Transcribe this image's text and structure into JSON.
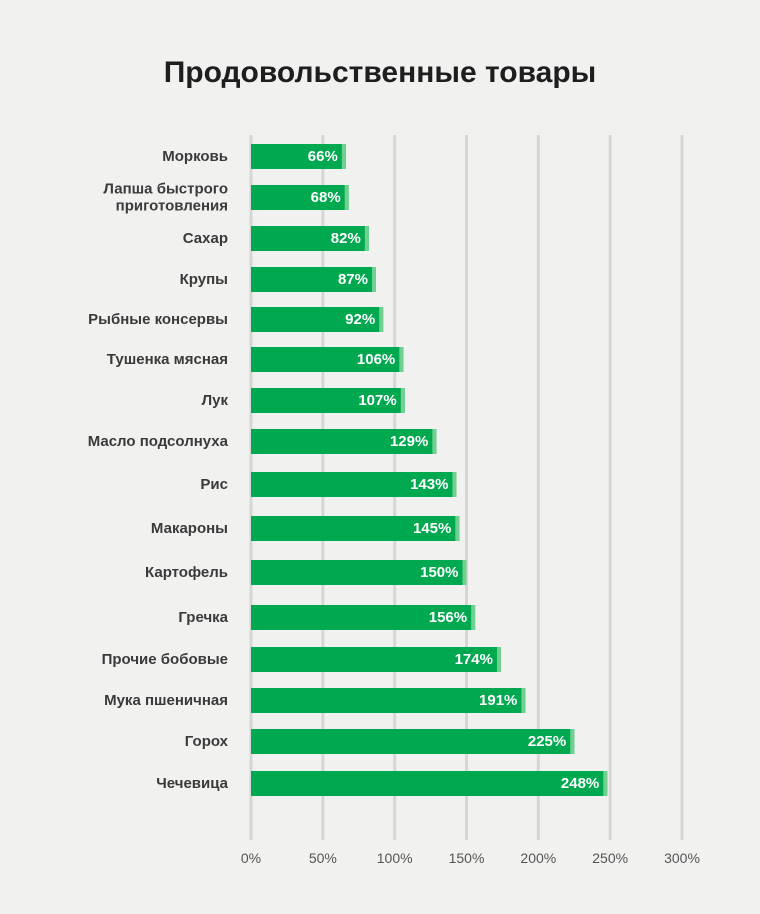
{
  "chart_data": {
    "type": "bar",
    "orientation": "horizontal",
    "title": "Продовольственные товары",
    "xlabel": "",
    "ylabel": "",
    "xlim": [
      0,
      300
    ],
    "grid": true,
    "ticks": [
      "0%",
      "50%",
      "100%",
      "150%",
      "200%",
      "250%",
      "300%"
    ],
    "tick_values": [
      0,
      50,
      100,
      150,
      200,
      250,
      300
    ],
    "categories": [
      "Морковь",
      "Лапша быстрого приготовления",
      "Сахар",
      "Крупы",
      "Рыбные консервы",
      "Тушенка мясная",
      "Лук",
      "Масло подсолнуха",
      "Рис",
      "Макароны",
      "Картофель",
      "Гречка",
      "Прочие бобовые",
      "Мука пшеничная",
      "Горох",
      "Чечевица"
    ],
    "label_lines": [
      [
        "Морковь"
      ],
      [
        "Лапша быстрого",
        "приготовления"
      ],
      [
        "Сахар"
      ],
      [
        "Крупы"
      ],
      [
        "Рыбные консервы"
      ],
      [
        "Тушенка мясная"
      ],
      [
        "Лук"
      ],
      [
        "Масло подсолнуха"
      ],
      [
        "Рис"
      ],
      [
        "Макароны"
      ],
      [
        "Картофель"
      ],
      [
        "Гречка"
      ],
      [
        "Прочие бобовые"
      ],
      [
        "Мука пшеничная"
      ],
      [
        "Горох"
      ],
      [
        "Чечевица"
      ]
    ],
    "values": [
      66,
      68,
      82,
      87,
      92,
      106,
      107,
      129,
      143,
      145,
      150,
      156,
      174,
      191,
      225,
      248
    ],
    "data_labels": [
      "66%",
      "68%",
      "82%",
      "87%",
      "92%",
      "106%",
      "107%",
      "129%",
      "143%",
      "145%",
      "150%",
      "156%",
      "174%",
      "191%",
      "225%",
      "248%"
    ],
    "bar_color": "#00a84f"
  }
}
